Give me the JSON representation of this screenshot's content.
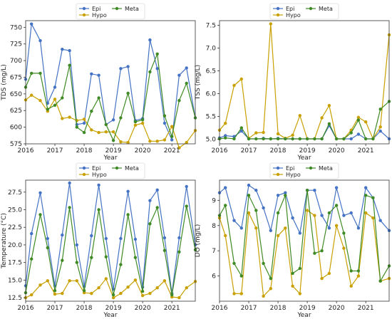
{
  "legend_labels": [
    "Epi",
    "Hypo",
    "Meta"
  ],
  "colors": {
    "Epi": "#4472c4",
    "Hypo": "#c8a000",
    "Meta": "#3f8a24"
  },
  "chart_data": [
    {
      "type": "line",
      "xlabel": "Year",
      "ylabel": "TDS (mg/L)",
      "xlim": [
        2016,
        2021.8
      ],
      "ylim": [
        575,
        760
      ],
      "xticks": [
        2016,
        2017,
        2018,
        2019,
        2020,
        2021
      ],
      "yticks": [
        575,
        600,
        625,
        650,
        675,
        700,
        725,
        750
      ],
      "legend": "top-center",
      "grid": false,
      "x": [
        2016.0,
        2016.2,
        2016.5,
        2016.75,
        2017.0,
        2017.25,
        2017.5,
        2017.75,
        2018.0,
        2018.25,
        2018.5,
        2018.75,
        2019.0,
        2019.25,
        2019.5,
        2019.75,
        2020.0,
        2020.25,
        2020.5,
        2020.75,
        2021.0,
        2021.25,
        2021.5,
        2021.8
      ],
      "series": [
        {
          "name": "Epi",
          "values": [
            672,
            755,
            730,
            636,
            660,
            717,
            715,
            604,
            606,
            680,
            678,
            604,
            611,
            688,
            691,
            610,
            613,
            731,
            688,
            606,
            581,
            678,
            689,
            614
          ]
        },
        {
          "name": "Hypo",
          "values": [
            641,
            648,
            640,
            624,
            642,
            613,
            615,
            610,
            612,
            596,
            592,
            593,
            593,
            578,
            577,
            603,
            606,
            579,
            579,
            581,
            601,
            569,
            577,
            595
          ]
        },
        {
          "name": "Meta",
          "values": [
            660,
            681,
            681,
            627,
            633,
            644,
            693,
            600,
            592,
            624,
            644,
            604,
            580,
            614,
            651,
            608,
            611,
            683,
            710,
            617,
            586,
            640,
            666,
            614
          ]
        }
      ]
    },
    {
      "type": "line",
      "xlabel": "Year",
      "ylabel": "TSS (mg/L)",
      "xlim": [
        2016,
        2021.8
      ],
      "ylim": [
        4.9,
        7.6
      ],
      "xticks": [
        2016,
        2017,
        2018,
        2019,
        2020,
        2021
      ],
      "yticks": [
        5.0,
        5.5,
        6.0,
        6.5,
        7.0,
        7.5
      ],
      "legend": "top-center",
      "grid": false,
      "x": [
        2016.0,
        2016.2,
        2016.5,
        2016.75,
        2017.0,
        2017.25,
        2017.5,
        2017.75,
        2018.0,
        2018.25,
        2018.5,
        2018.75,
        2019.0,
        2019.25,
        2019.5,
        2019.75,
        2020.0,
        2020.25,
        2020.5,
        2020.75,
        2021.0,
        2021.25,
        2021.5,
        2021.8
      ],
      "series": [
        {
          "name": "Epi",
          "values": [
            5.03,
            5.08,
            5.06,
            5.18,
            5.01,
            5.01,
            5.02,
            5.01,
            5.02,
            5.01,
            5.01,
            5.01,
            5.01,
            5.01,
            5.01,
            5.3,
            5.01,
            5.01,
            5.01,
            5.11,
            5.01,
            5.01,
            5.18,
            5.01
          ]
        },
        {
          "name": "Hypo",
          "values": [
            5.2,
            5.35,
            6.18,
            6.32,
            5.02,
            5.14,
            5.15,
            7.53,
            5.12,
            5.02,
            5.09,
            5.52,
            5.01,
            5.01,
            5.47,
            5.74,
            5.01,
            5.01,
            5.2,
            5.48,
            5.38,
            5.01,
            5.27,
            7.29
          ]
        },
        {
          "name": "Meta",
          "values": [
            5.01,
            5.03,
            5.01,
            5.25,
            5.01,
            5.01,
            5.01,
            5.01,
            5.01,
            5.01,
            5.01,
            5.01,
            5.01,
            5.01,
            5.01,
            5.34,
            5.01,
            5.01,
            5.14,
            5.42,
            5.01,
            5.01,
            5.66,
            5.83
          ]
        }
      ]
    },
    {
      "type": "line",
      "xlabel": "Year",
      "ylabel": "Temperature (°C)",
      "xlim": [
        2016,
        2021.8
      ],
      "ylim": [
        12.0,
        29.2
      ],
      "xticks": [
        2016,
        2017,
        2018,
        2019,
        2020,
        2021
      ],
      "yticks": [
        12.5,
        15.0,
        17.5,
        20.0,
        22.5,
        25.0,
        27.5
      ],
      "legend": "top-center",
      "grid": false,
      "x": [
        2016.0,
        2016.2,
        2016.5,
        2016.75,
        2017.0,
        2017.25,
        2017.5,
        2017.75,
        2018.0,
        2018.25,
        2018.5,
        2018.75,
        2019.0,
        2019.25,
        2019.5,
        2019.75,
        2020.0,
        2020.25,
        2020.5,
        2020.75,
        2021.0,
        2021.25,
        2021.5,
        2021.8
      ],
      "series": [
        {
          "name": "Epi",
          "values": [
            14.2,
            21.6,
            27.4,
            20.9,
            14.2,
            21.4,
            28.8,
            20.0,
            14.1,
            21.3,
            28.5,
            20.9,
            13.7,
            20.9,
            27.6,
            20.8,
            14.0,
            26.3,
            27.8,
            21.0,
            13.1,
            21.0,
            28.3,
            20.0
          ]
        },
        {
          "name": "Hypo",
          "values": [
            12.5,
            12.9,
            14.3,
            14.9,
            13.0,
            13.1,
            14.9,
            14.9,
            13.2,
            13.1,
            13.9,
            15.2,
            12.5,
            13.1,
            14.0,
            15.0,
            12.8,
            13.1,
            13.9,
            14.9,
            12.6,
            12.5,
            13.9,
            14.8
          ]
        },
        {
          "name": "Meta",
          "values": [
            13.2,
            18.0,
            24.3,
            19.6,
            13.5,
            17.8,
            25.3,
            17.5,
            13.5,
            18.2,
            25.0,
            18.3,
            12.9,
            17.2,
            24.3,
            18.2,
            13.4,
            23.0,
            25.3,
            19.2,
            12.9,
            19.0,
            25.5,
            19.3
          ]
        }
      ]
    },
    {
      "type": "line",
      "xlabel": "Year",
      "ylabel": "DO (mg/L)",
      "xlim": [
        2016,
        2021.8
      ],
      "ylim": [
        5.0,
        9.8
      ],
      "xticks": [
        2016,
        2017,
        2018,
        2019,
        2020,
        2021
      ],
      "yticks": [
        6,
        7,
        8,
        9
      ],
      "legend": "top-center",
      "grid": false,
      "x": [
        2016.0,
        2016.2,
        2016.5,
        2016.75,
        2017.0,
        2017.25,
        2017.5,
        2017.75,
        2018.0,
        2018.25,
        2018.5,
        2018.75,
        2019.0,
        2019.25,
        2019.5,
        2019.75,
        2020.0,
        2020.25,
        2020.5,
        2020.75,
        2021.0,
        2021.25,
        2021.5,
        2021.8
      ],
      "series": [
        {
          "name": "Epi",
          "values": [
            9.3,
            9.5,
            8.2,
            7.9,
            9.6,
            9.4,
            8.7,
            7.8,
            9.2,
            9.3,
            8.3,
            7.7,
            9.4,
            9.4,
            8.4,
            7.9,
            9.5,
            8.4,
            8.5,
            7.9,
            9.5,
            9.1,
            8.2,
            7.8
          ]
        },
        {
          "name": "Hypo",
          "values": [
            8.3,
            7.6,
            5.3,
            5.3,
            8.5,
            7.9,
            5.2,
            5.5,
            7.6,
            7.9,
            5.6,
            5.3,
            8.6,
            8.4,
            5.9,
            6.1,
            8.0,
            7.1,
            5.6,
            6.0,
            8.5,
            8.3,
            5.8,
            5.9
          ]
        },
        {
          "name": "Meta",
          "values": [
            8.4,
            8.8,
            6.5,
            6.0,
            9.2,
            8.6,
            6.5,
            5.9,
            8.5,
            9.2,
            6.1,
            6.3,
            9.4,
            6.9,
            7.0,
            8.5,
            8.8,
            7.7,
            6.2,
            6.2,
            9.2,
            9.1,
            5.8,
            6.4
          ]
        }
      ]
    }
  ]
}
